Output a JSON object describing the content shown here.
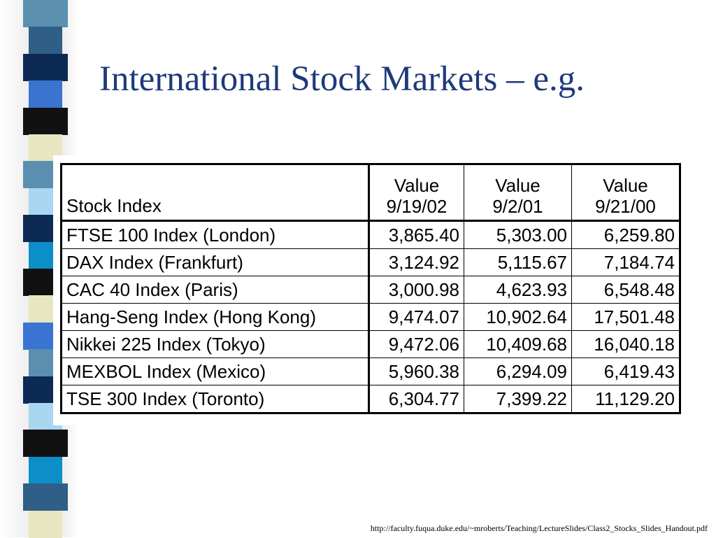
{
  "slide": {
    "title": "International Stock Markets – e.g.",
    "source_url": "http://faculty.fuqua.duke.edu/~mroberts/Teaching/LectureSlides/Class2_Stocks_Slides_Handout.pdf"
  },
  "table": {
    "header": {
      "name": "Stock Index",
      "value_label": "Value",
      "dates": [
        "9/19/02",
        "9/2/01",
        "9/21/00"
      ]
    },
    "rows": [
      {
        "name": "FTSE 100 Index (London)",
        "values": [
          "3,865.40",
          "5,303.00",
          "6,259.80"
        ]
      },
      {
        "name": "DAX Index (Frankfurt)",
        "values": [
          "3,124.92",
          "5,115.67",
          "7,184.74"
        ]
      },
      {
        "name": "CAC 40 Index (Paris)",
        "values": [
          "3,000.98",
          "4,623.93",
          "6,548.48"
        ]
      },
      {
        "name": "Hang-Seng Index (Hong Kong)",
        "values": [
          "9,474.07",
          "10,902.64",
          "17,501.48"
        ]
      },
      {
        "name": "Nikkei 225 Index (Tokyo)",
        "values": [
          "9,472.06",
          "10,409.68",
          "16,040.18"
        ]
      },
      {
        "name": "MEXBOL Index (Mexico)",
        "values": [
          "5,960.38",
          "6,294.09",
          "6,419.43"
        ]
      },
      {
        "name": "TSE 300 Index (Toronto)",
        "values": [
          "6,304.77",
          "7,399.22",
          "11,129.20"
        ]
      }
    ]
  },
  "colors": {
    "title": "#1f3a7a",
    "stripe": [
      "#5a8fb0",
      "#2f5e86",
      "#0d2a55",
      "#3a74d0",
      "#111111",
      "#e8e6c0",
      "#a9d6f0",
      "#0c8fc8"
    ]
  }
}
